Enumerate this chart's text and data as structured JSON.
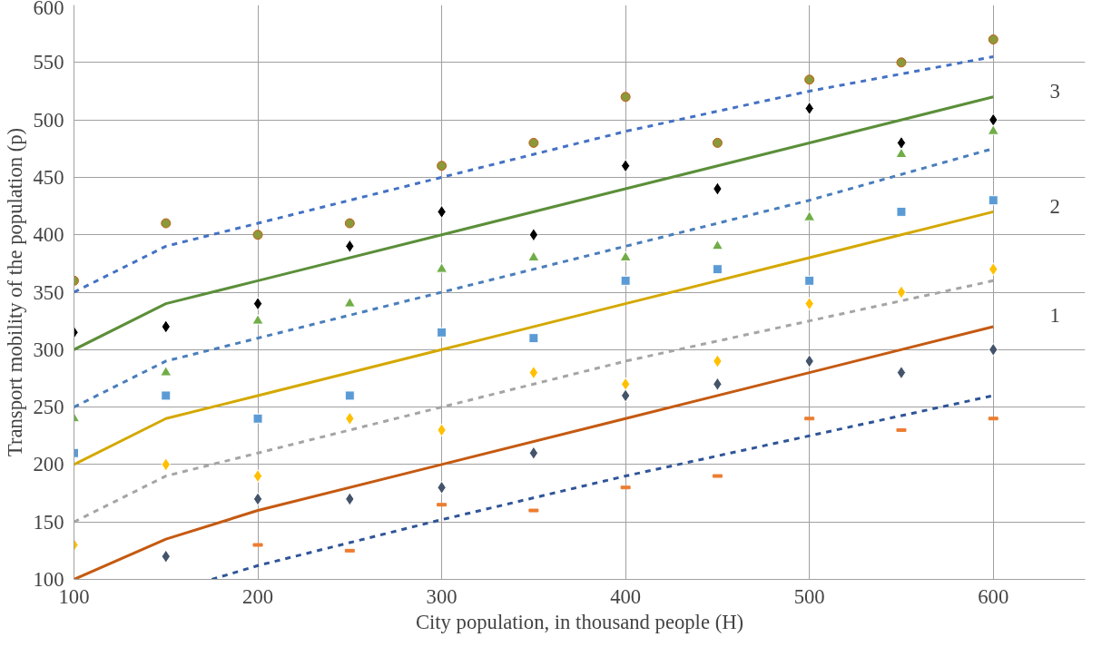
{
  "chart_data": {
    "type": "scatter",
    "xlabel": "City population, in thousand people (H)",
    "ylabel": "Transport mobility of the population (p)",
    "x": [
      100,
      150,
      200,
      250,
      300,
      350,
      400,
      450,
      500,
      550,
      600
    ],
    "series": [
      {
        "type": "line",
        "line_style": "dashed",
        "marker": "none",
        "color": "#4472c4",
        "x": [
          100,
          150,
          175,
          200,
          300,
          400,
          500,
          600
        ],
        "values": [
          350,
          390,
          400,
          410,
          450,
          490,
          525,
          555
        ]
      },
      {
        "type": "line",
        "line_style": "solid",
        "marker": "none",
        "color": "#5b8f3a",
        "x": [
          100,
          150,
          175,
          200,
          300,
          400,
          500,
          600
        ],
        "values": [
          300,
          340,
          350,
          360,
          400,
          440,
          480,
          520
        ]
      },
      {
        "type": "line",
        "line_style": "dashed",
        "marker": "none",
        "color": "#4a7ebb",
        "x": [
          100,
          150,
          175,
          200,
          300,
          400,
          500,
          600
        ],
        "values": [
          250,
          290,
          300,
          310,
          350,
          390,
          430,
          475
        ]
      },
      {
        "type": "line",
        "line_style": "solid",
        "marker": "none",
        "color": "#d4a800",
        "x": [
          100,
          150,
          175,
          200,
          300,
          400,
          500,
          600
        ],
        "values": [
          200,
          240,
          250,
          260,
          300,
          340,
          380,
          420
        ]
      },
      {
        "type": "line",
        "line_style": "dashed",
        "marker": "none",
        "color": "#a5a5a5",
        "x": [
          100,
          150,
          200,
          300,
          400,
          500,
          600
        ],
        "values": [
          150,
          190,
          210,
          250,
          290,
          325,
          360
        ]
      },
      {
        "type": "line",
        "line_style": "solid",
        "marker": "none",
        "color": "#c55a11",
        "x": [
          100,
          150,
          200,
          300,
          400,
          500,
          600
        ],
        "values": [
          100,
          135,
          160,
          200,
          240,
          280,
          320
        ]
      },
      {
        "type": "line",
        "line_style": "dashed",
        "marker": "none",
        "color": "#2f5597",
        "x": [
          175,
          200,
          300,
          400,
          500,
          600
        ],
        "values": [
          100,
          112,
          152,
          190,
          225,
          260
        ]
      },
      {
        "marker": "circle",
        "color": "#8a9a3a",
        "values": [
          360,
          410,
          400,
          410,
          460,
          480,
          520,
          480,
          535,
          550,
          570
        ]
      },
      {
        "marker": "diamond",
        "color": "#000000",
        "values": [
          315,
          320,
          340,
          390,
          420,
          400,
          460,
          440,
          510,
          480,
          500
        ]
      },
      {
        "marker": "triangle",
        "color": "#70ad47",
        "values": [
          240,
          280,
          325,
          340,
          370,
          380,
          380,
          390,
          415,
          470,
          490
        ]
      },
      {
        "marker": "square",
        "color": "#5b9bd5",
        "values": [
          210,
          260,
          240,
          260,
          315,
          310,
          360,
          370,
          360,
          420,
          430
        ]
      },
      {
        "marker": "diamond",
        "color": "#ffc000",
        "values": [
          130,
          200,
          190,
          240,
          230,
          280,
          270,
          290,
          340,
          350,
          370
        ]
      },
      {
        "marker": "diamond",
        "color": "#44546a",
        "values": [
          null,
          120,
          170,
          170,
          180,
          210,
          260,
          270,
          290,
          280,
          300
        ]
      },
      {
        "color": "#ed7d31",
        "values": [
          null,
          null,
          130,
          125,
          165,
          160,
          180,
          190,
          240,
          230,
          240
        ]
      }
    ],
    "annotations": [
      "3",
      "2",
      "1"
    ],
    "xlim": [
      100,
      650
    ],
    "ylim": [
      100,
      600
    ],
    "xticks": [
      100,
      200,
      300,
      400,
      500,
      600
    ],
    "yticks": [
      100,
      150,
      200,
      250,
      300,
      350,
      400,
      450,
      500,
      550,
      600
    ],
    "grid": true
  }
}
